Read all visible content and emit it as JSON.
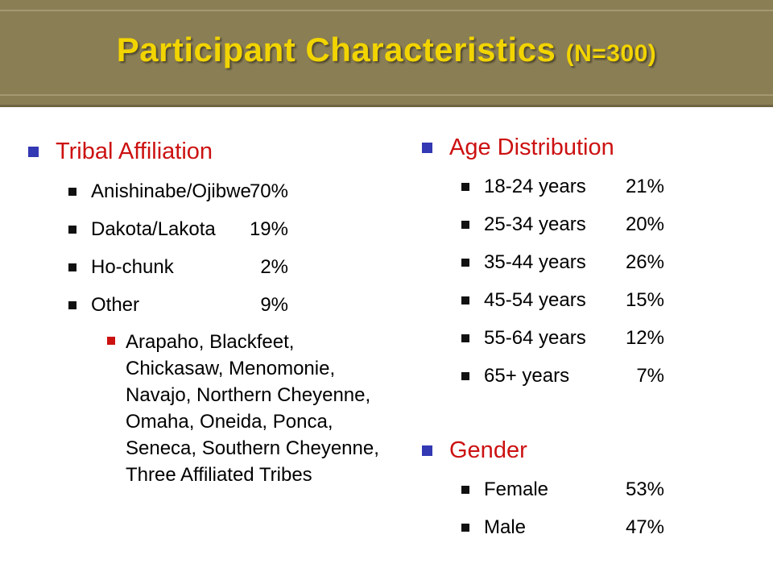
{
  "slide": {
    "title": "Participant Characteristics",
    "title_suffix": "(N=300)"
  },
  "tribal": {
    "heading": "Tribal Affiliation",
    "items": [
      {
        "label": "Anishinabe/Ojibwe",
        "value": "70%"
      },
      {
        "label": "Dakota/Lakota",
        "value": "19%"
      },
      {
        "label": "Ho-chunk",
        "value": "2%"
      },
      {
        "label": "Other",
        "value": "9%"
      }
    ],
    "other_detail": "Arapaho, Blackfeet, Chickasaw, Menomonie, Navajo, Northern Cheyenne, Omaha, Oneida, Ponca, Seneca, Southern Cheyenne, Three Affiliated Tribes"
  },
  "age": {
    "heading": "Age Distribution",
    "items": [
      {
        "label": "18-24 years",
        "value": "21%"
      },
      {
        "label": "25-34 years",
        "value": "20%"
      },
      {
        "label": "35-44 years",
        "value": "26%"
      },
      {
        "label": "45-54 years",
        "value": "15%"
      },
      {
        "label": "55-64 years",
        "value": "12%"
      },
      {
        "label": "65+ years",
        "value": "7%"
      }
    ]
  },
  "gender": {
    "heading": "Gender",
    "items": [
      {
        "label": "Female",
        "value": "53%"
      },
      {
        "label": "Male",
        "value": "47%"
      }
    ]
  },
  "colors": {
    "title_band": "#8a7e55",
    "title_text": "#f2d400",
    "heading_text": "#cc1111",
    "level1_bullet": "#3338b3",
    "level3_bullet": "#cc1111"
  }
}
